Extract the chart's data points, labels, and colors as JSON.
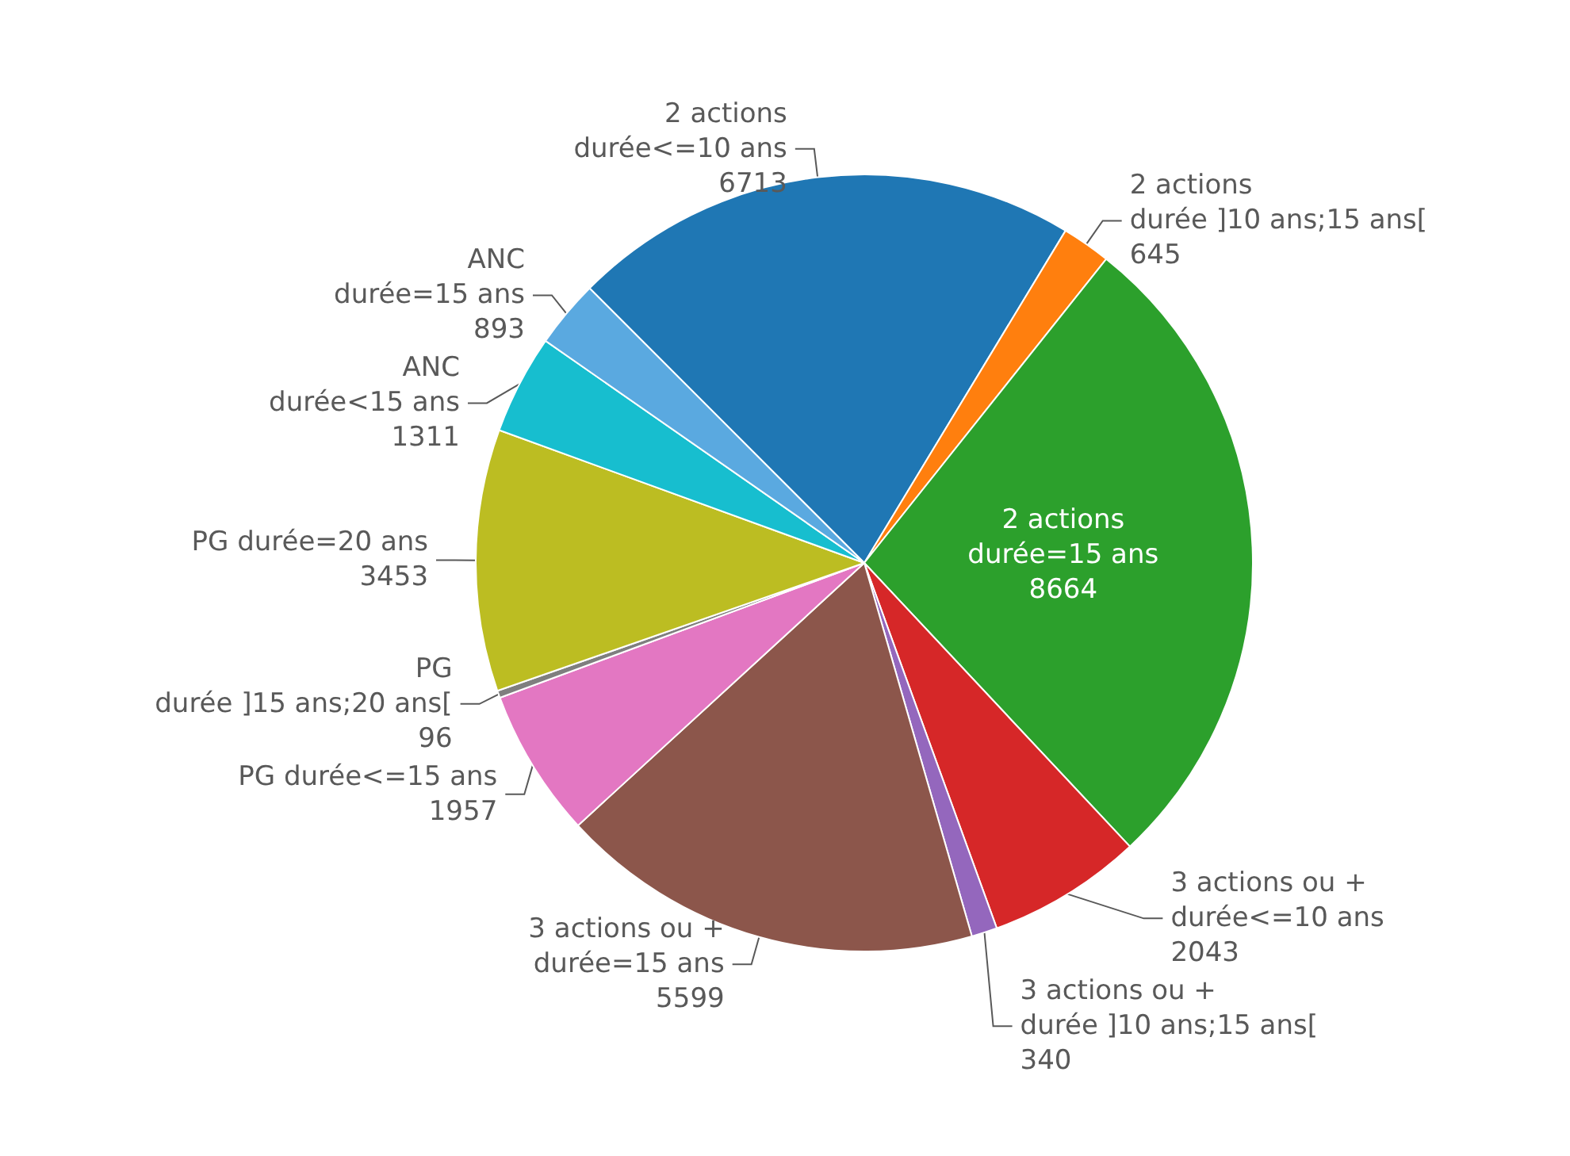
{
  "chart_data": {
    "type": "pie",
    "categories": [
      "2 actions\ndurée<=10 ans",
      "2 actions\ndurée ]10 ans;15 ans[",
      "2 actions\ndurée=15 ans",
      "3 actions ou +\ndurée<=10 ans",
      "3 actions ou +\ndurée ]10 ans;15 ans[",
      "3 actions ou +\ndurée=15 ans",
      "PG durée<=15 ans",
      "PG\ndurée ]15 ans;20 ans[",
      "PG durée=20 ans",
      "ANC\ndurée<15 ans",
      "ANC\ndurée=15 ans"
    ],
    "values": [
      6713,
      645,
      8664,
      2043,
      340,
      5599,
      1957,
      96,
      3453,
      1311,
      893
    ],
    "colors": [
      "#1f77b4",
      "#ff7f0e",
      "#2ca02c",
      "#d62728",
      "#9467bd",
      "#8c564b",
      "#e377c2",
      "#7f7f7f",
      "#bcbd22",
      "#17becf",
      "#5aa9e0"
    ],
    "data_labels": true,
    "legend": false
  }
}
